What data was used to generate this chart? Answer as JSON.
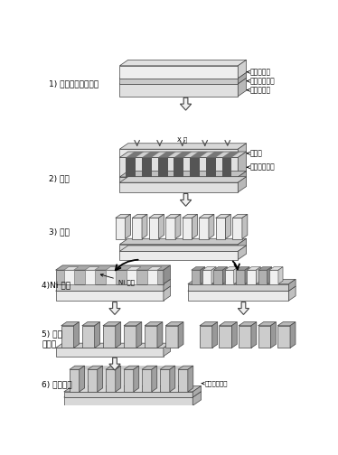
{
  "background_color": "#f0f0f0",
  "colors": {
    "border": "#444444",
    "arrow_fill": "#f0f0f0",
    "layer_top_light": "#e8e8e8",
    "layer_front_light": "#f0f0f0",
    "layer_side_light": "#d0d0d0",
    "layer_top_mid": "#c8c8c8",
    "layer_front_mid": "#d8d8d8",
    "layer_side_mid": "#b8b8b8",
    "layer_top_dark": "#a8a8a8",
    "layer_front_dark": "#b8b8b8",
    "layer_side_dark": "#909090",
    "pillar_top": "#d0d0d0",
    "pillar_front": "#e0e0e0",
    "pillar_side": "#b8b8b8",
    "ni_top": "#a0a0a0",
    "ni_front": "#b0b0b0",
    "ni_side": "#888888",
    "stripe_dark": "#555555",
    "stripe_light": "#e8e8e8"
  },
  "step1_label": "1) 感光性樹脂の塗布",
  "step2_label": "2) 露光",
  "step3_label": "3) 現像",
  "step4_label": "4)Ni 電鋳",
  "step5_label": "5) 樹脂\nの除去",
  "step6_label": "6) 樹脂成形",
  "ann1a": "感光性樹脂",
  "ann1b": "電鋳用導電層",
  "ann1c": "平滑な基板",
  "ann2a": "マスク",
  "ann2b": "感光した樹脂",
  "ann4": "Ni 金属",
  "ann6": "成形した樹脂",
  "xray_label": "X 線"
}
